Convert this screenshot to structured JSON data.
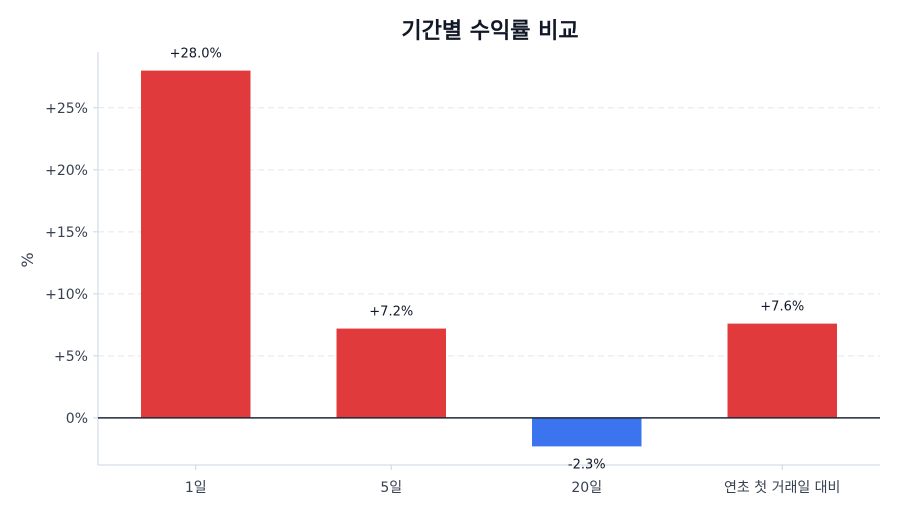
{
  "chart_data": {
    "type": "bar",
    "title": "기간별 수익률 비교",
    "ylabel": "%",
    "categories": [
      "1일",
      "5일",
      "20일",
      "연초 첫 거래일 대비"
    ],
    "values": [
      28.0,
      7.2,
      -2.3,
      7.6
    ],
    "data_labels": [
      "+28.0%",
      "+7.2%",
      "-2.3%",
      "+7.6%"
    ],
    "ylim": [
      -3.8,
      29.5
    ],
    "yticks": [
      0,
      5,
      10,
      15,
      20,
      25
    ],
    "ytick_labels": [
      "0%",
      "+5%",
      "+10%",
      "+15%",
      "+20%",
      "+25%"
    ],
    "grid": true,
    "colors": {
      "positive": "#e03a3c",
      "negative": "#3b74ee"
    }
  }
}
